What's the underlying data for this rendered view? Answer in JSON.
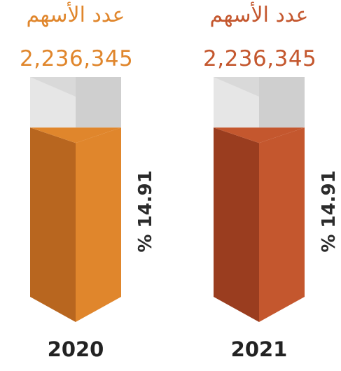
{
  "colors": {
    "orange": "#e0862c",
    "orange_dark": "#b8661f",
    "rust": "#c4572e",
    "rust_dark": "#9a3d1f",
    "empty_light": "#e6e6e6",
    "empty_dark": "#cfcfcf"
  },
  "chart_data": {
    "type": "bar",
    "categories": [
      "2020",
      "2021"
    ],
    "series": [
      {
        "values": [
          14.91,
          14.91
        ]
      }
    ],
    "ylim": [
      0,
      100
    ],
    "panels": [
      {
        "year": "2020",
        "shares_label": "عدد الأسهم",
        "shares_value": "2,236,345",
        "percent_value": 14.91,
        "percent_label": "% 14.91",
        "fill_fraction": 0.77,
        "color_key": "orange"
      },
      {
        "year": "2021",
        "shares_label": "عدد الأسهم",
        "shares_value": "2,236,345",
        "percent_value": 14.91,
        "percent_label": "% 14.91",
        "fill_fraction": 0.77,
        "color_key": "rust"
      }
    ]
  }
}
